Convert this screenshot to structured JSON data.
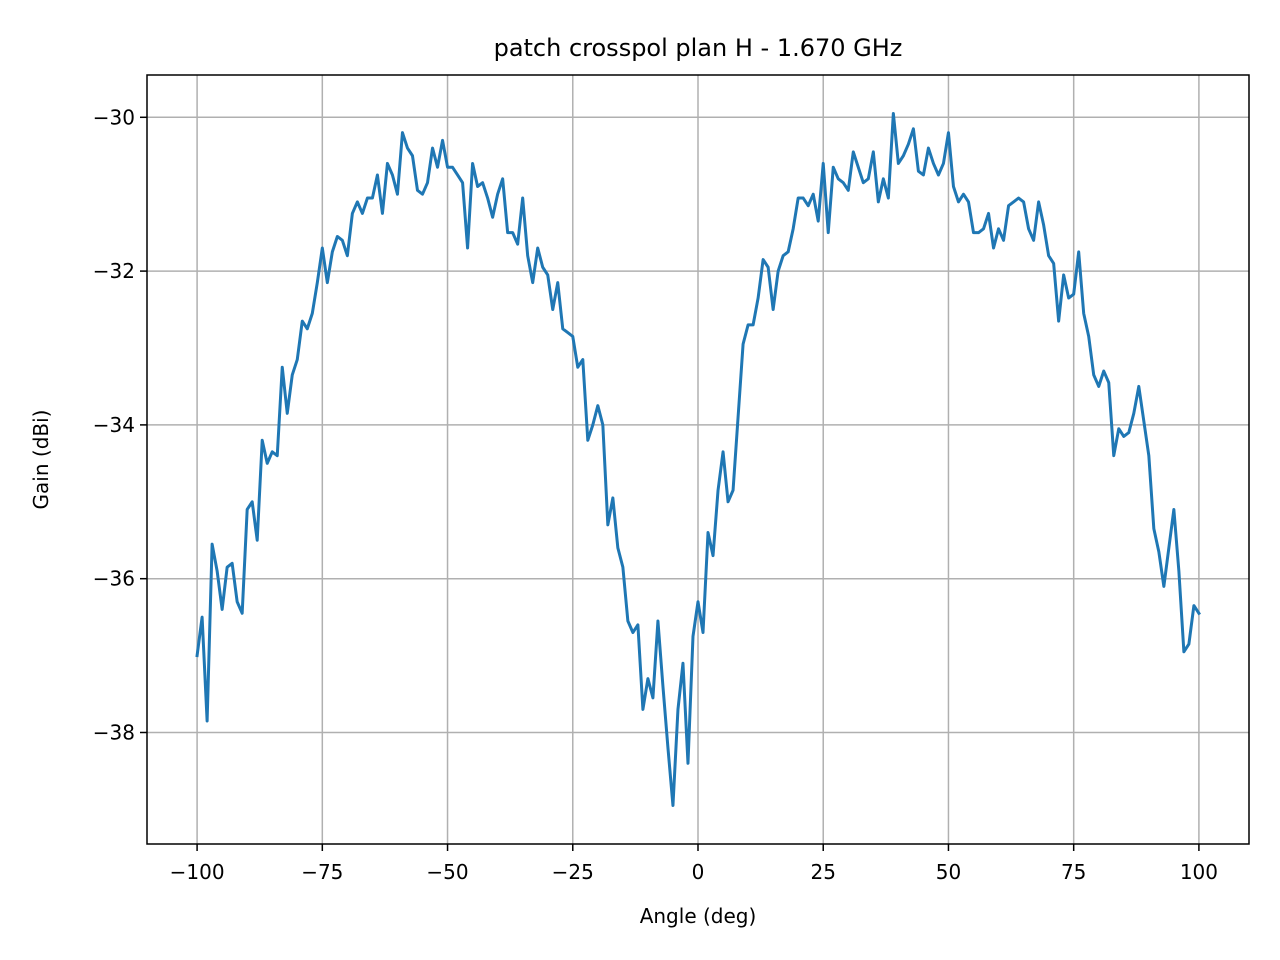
{
  "chart_data": {
    "type": "line",
    "title": "patch crosspol plan H - 1.670 GHz",
    "xlabel": "Angle (deg)",
    "ylabel": "Gain (dBi)",
    "xlim": [
      -110,
      110
    ],
    "ylim": [
      -39.45,
      -29.45
    ],
    "xticks": [
      -100,
      -75,
      -50,
      -25,
      0,
      25,
      50,
      75,
      100
    ],
    "xtick_labels": [
      "−100",
      "−75",
      "−50",
      "−25",
      "0",
      "25",
      "50",
      "75",
      "100"
    ],
    "yticks": [
      -30,
      -32,
      -34,
      -36,
      -38
    ],
    "ytick_labels": [
      "−30",
      "−32",
      "−34",
      "−36",
      "−38"
    ],
    "grid": true,
    "series": [
      {
        "color": "#1f77b4",
        "x": [
          -100,
          -99,
          -98,
          -97,
          -96,
          -95,
          -94,
          -93,
          -92,
          -91,
          -90,
          -89,
          -88,
          -87,
          -86,
          -85,
          -84,
          -83,
          -82,
          -81,
          -80,
          -79,
          -78,
          -77,
          -76,
          -75,
          -74,
          -73,
          -72,
          -71,
          -70,
          -69,
          -68,
          -67,
          -66,
          -65,
          -64,
          -63,
          -62,
          -61,
          -60,
          -59,
          -58,
          -57,
          -56,
          -55,
          -54,
          -53,
          -52,
          -51,
          -50,
          -49,
          -48,
          -47,
          -46,
          -45,
          -44,
          -43,
          -42,
          -41,
          -40,
          -39,
          -38,
          -37,
          -36,
          -35,
          -34,
          -33,
          -32,
          -31,
          -30,
          -29,
          -28,
          -27,
          -26,
          -25,
          -24,
          -23,
          -22,
          -21,
          -20,
          -19,
          -18,
          -17,
          -16,
          -15,
          -14,
          -13,
          -12,
          -11,
          -10,
          -9,
          -8,
          -7,
          -6,
          -5,
          -4,
          -3,
          -2,
          -1,
          0,
          1,
          2,
          3,
          4,
          5,
          6,
          7,
          8,
          9,
          10,
          11,
          12,
          13,
          14,
          15,
          16,
          17,
          18,
          19,
          20,
          21,
          22,
          23,
          24,
          25,
          26,
          27,
          28,
          29,
          30,
          31,
          32,
          33,
          34,
          35,
          36,
          37,
          38,
          39,
          40,
          41,
          42,
          43,
          44,
          45,
          46,
          47,
          48,
          49,
          50,
          51,
          52,
          53,
          54,
          55,
          56,
          57,
          58,
          59,
          60,
          61,
          62,
          63,
          64,
          65,
          66,
          67,
          68,
          69,
          70,
          71,
          72,
          73,
          74,
          75,
          76,
          77,
          78,
          79,
          80,
          81,
          82,
          83,
          84,
          85,
          86,
          87,
          88,
          89,
          90,
          91,
          92,
          93,
          94,
          95,
          96,
          97,
          98,
          99,
          100
        ],
        "y": [
          -37.0,
          -36.5,
          -37.85,
          -35.55,
          -35.9,
          -36.4,
          -35.85,
          -35.8,
          -36.3,
          -36.45,
          -35.1,
          -35.0,
          -35.5,
          -34.2,
          -34.5,
          -34.35,
          -34.4,
          -33.25,
          -33.85,
          -33.35,
          -33.15,
          -32.65,
          -32.75,
          -32.55,
          -32.15,
          -31.7,
          -32.15,
          -31.75,
          -31.55,
          -31.6,
          -31.8,
          -31.25,
          -31.1,
          -31.25,
          -31.05,
          -31.05,
          -30.75,
          -31.25,
          -30.6,
          -30.75,
          -31.0,
          -30.2,
          -30.4,
          -30.5,
          -30.95,
          -31.0,
          -30.85,
          -30.4,
          -30.65,
          -30.3,
          -30.65,
          -30.65,
          -30.75,
          -30.85,
          -31.7,
          -30.6,
          -30.9,
          -30.85,
          -31.05,
          -31.3,
          -31.0,
          -30.8,
          -31.5,
          -31.5,
          -31.65,
          -31.05,
          -31.8,
          -32.15,
          -31.7,
          -31.95,
          -32.05,
          -32.5,
          -32.15,
          -32.75,
          -32.8,
          -32.85,
          -33.25,
          -33.15,
          -34.2,
          -34.0,
          -33.75,
          -34.0,
          -35.3,
          -34.95,
          -35.6,
          -35.85,
          -36.55,
          -36.7,
          -36.6,
          -37.7,
          -37.3,
          -37.55,
          -36.55,
          -37.4,
          -38.2,
          -38.95,
          -37.7,
          -37.1,
          -38.4,
          -36.75,
          -36.3,
          -36.7,
          -35.4,
          -35.7,
          -34.85,
          -34.35,
          -35.0,
          -34.85,
          -33.9,
          -32.95,
          -32.7,
          -32.7,
          -32.35,
          -31.85,
          -31.95,
          -32.5,
          -32.0,
          -31.8,
          -31.75,
          -31.45,
          -31.05,
          -31.05,
          -31.15,
          -31.0,
          -31.35,
          -30.6,
          -31.5,
          -30.65,
          -30.8,
          -30.85,
          -30.95,
          -30.45,
          -30.65,
          -30.85,
          -30.8,
          -30.45,
          -31.1,
          -30.8,
          -31.05,
          -29.95,
          -30.6,
          -30.5,
          -30.35,
          -30.15,
          -30.7,
          -30.75,
          -30.4,
          -30.6,
          -30.75,
          -30.6,
          -30.2,
          -30.9,
          -31.1,
          -31.0,
          -31.1,
          -31.5,
          -31.5,
          -31.45,
          -31.25,
          -31.7,
          -31.45,
          -31.6,
          -31.15,
          -31.1,
          -31.05,
          -31.1,
          -31.45,
          -31.6,
          -31.1,
          -31.4,
          -31.8,
          -31.9,
          -32.65,
          -32.05,
          -32.35,
          -32.3,
          -31.75,
          -32.55,
          -32.85,
          -33.35,
          -33.5,
          -33.3,
          -33.45,
          -34.4,
          -34.05,
          -34.15,
          -34.1,
          -33.85,
          -33.5,
          -33.95,
          -34.4,
          -35.35,
          -35.65,
          -36.1,
          -35.6,
          -35.1,
          -35.9,
          -36.95,
          -36.85,
          -36.35,
          -36.45
        ]
      }
    ]
  }
}
